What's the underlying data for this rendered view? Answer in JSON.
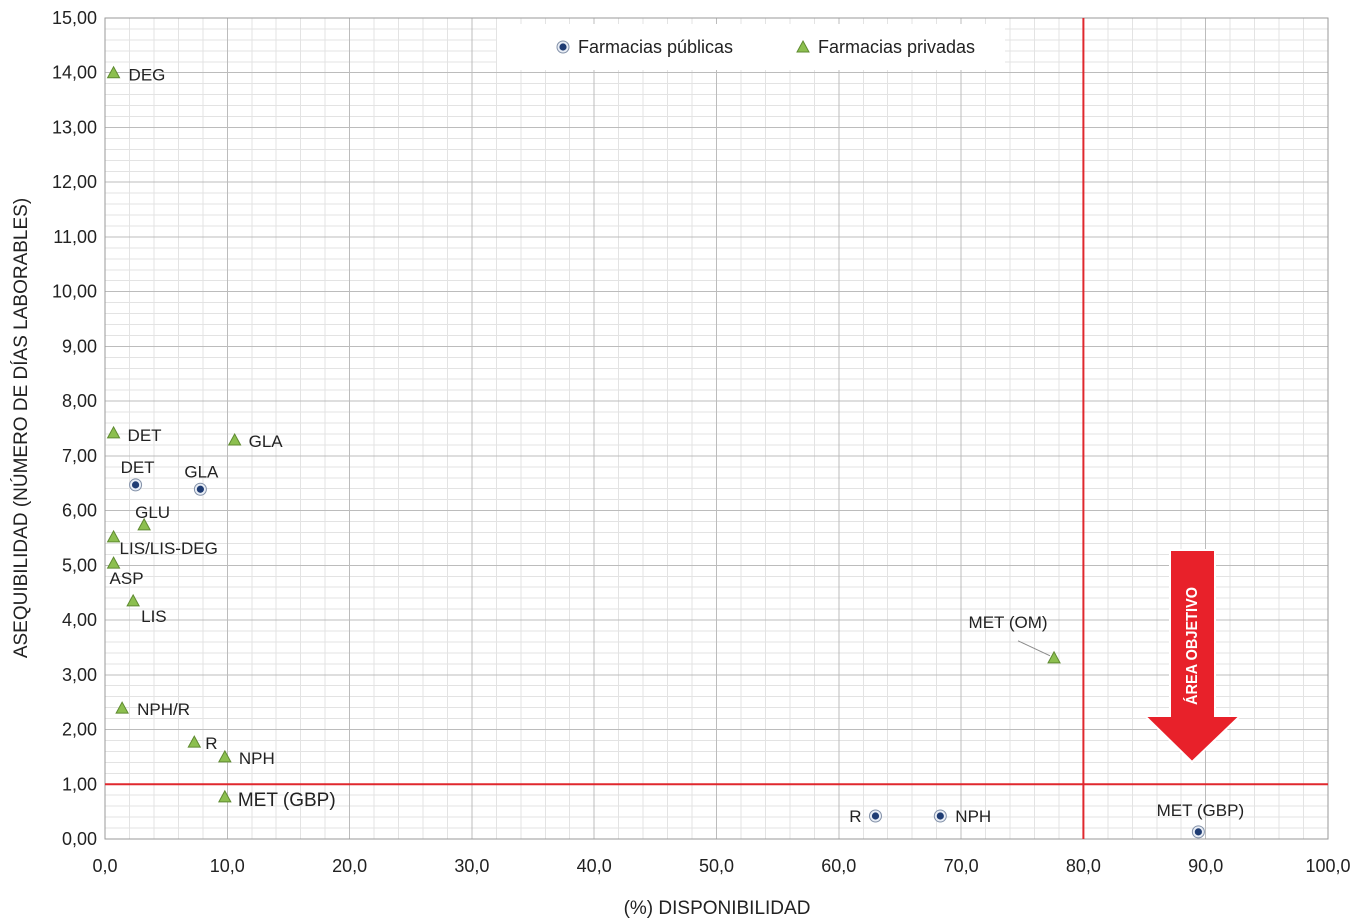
{
  "chart_data": {
    "type": "scatter",
    "xlabel": "(%) DISPONIBILIDAD",
    "ylabel": "ASEQUIBILIDAD (NÚMERO DE DÍAS LABORABLES)",
    "xlim": [
      0,
      100
    ],
    "ylim": [
      0,
      15
    ],
    "x_ticks": [
      "0,0",
      "10,0",
      "20,0",
      "30,0",
      "40,0",
      "50,0",
      "60,0",
      "70,0",
      "80,0",
      "90,0",
      "100,0"
    ],
    "y_ticks": [
      "0,00",
      "1,00",
      "2,00",
      "3,00",
      "4,00",
      "5,00",
      "6,00",
      "7,00",
      "8,00",
      "9,00",
      "10,00",
      "11,00",
      "12,00",
      "13,00",
      "14,00",
      "15,00"
    ],
    "grid": {
      "major": true,
      "minor": true
    },
    "legend_position": "top",
    "series": [
      {
        "name": "Farmacias públicas",
        "marker": "circle",
        "color": "#1f3c73",
        "points": [
          {
            "label": "DET",
            "x": 2.5,
            "y": 6.47
          },
          {
            "label": "GLA",
            "x": 7.8,
            "y": 6.39
          },
          {
            "label": "R",
            "x": 63.0,
            "y": 0.42
          },
          {
            "label": "NPH",
            "x": 68.3,
            "y": 0.42
          },
          {
            "label": "MET (GBP)",
            "x": 89.4,
            "y": 0.13
          }
        ]
      },
      {
        "name": "Farmacias privadas",
        "marker": "triangle",
        "color": "#8cbf4f",
        "points": [
          {
            "label": "DEG",
            "x": 0.7,
            "y": 14.0
          },
          {
            "label": "DET",
            "x": 0.7,
            "y": 7.42
          },
          {
            "label": "GLA",
            "x": 10.6,
            "y": 7.29
          },
          {
            "label": "GLU",
            "x": 3.2,
            "y": 5.74
          },
          {
            "label": "LIS/LIS-DEG",
            "x": 0.7,
            "y": 5.52
          },
          {
            "label": "ASP",
            "x": 0.7,
            "y": 5.04
          },
          {
            "label": "LIS",
            "x": 2.3,
            "y": 4.35
          },
          {
            "label": "NPH/R",
            "x": 1.4,
            "y": 2.39
          },
          {
            "label": "R",
            "x": 7.3,
            "y": 1.77
          },
          {
            "label": "NPH",
            "x": 9.8,
            "y": 1.5
          },
          {
            "label": "MET (GBP)",
            "x": 9.8,
            "y": 0.77
          },
          {
            "label": "MET (OM)",
            "x": 77.6,
            "y": 3.31
          }
        ]
      }
    ],
    "reference_lines": [
      {
        "x": 80
      },
      {
        "y": 1
      }
    ],
    "reference_line_color": "#e0282e",
    "annotations": [
      {
        "text": "ÁREA OBJETIVO",
        "shape": "arrow-down",
        "color": "#e8212a"
      }
    ]
  }
}
